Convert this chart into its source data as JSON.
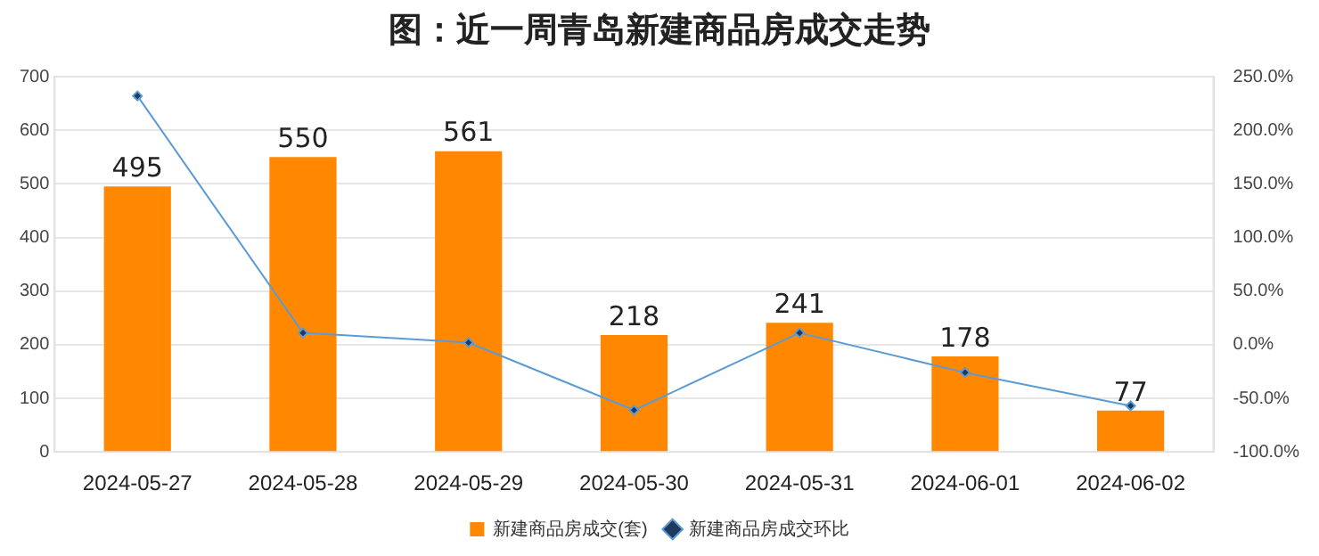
{
  "chart_data": {
    "type": "bar",
    "title": "图：近一周青岛新建商品房成交走势",
    "categories": [
      "2024-05-27",
      "2024-05-28",
      "2024-05-29",
      "2024-05-30",
      "2024-05-31",
      "2024-06-01",
      "2024-06-02"
    ],
    "series": [
      {
        "name": "新建商品房成交(套)",
        "color": "#ff8800",
        "values": [
          495,
          550,
          561,
          218,
          241,
          178,
          77
        ],
        "value_labels": [
          "495",
          "550",
          "561",
          "218",
          "241",
          "178",
          "77"
        ]
      },
      {
        "name": "新建商品房成交环比",
        "type": "line",
        "axis": "y2",
        "color": "#5b9bd5",
        "marker": "diamond",
        "values": [
          232,
          11,
          2,
          -61,
          11,
          -26,
          -57
        ]
      }
    ],
    "ylim": [
      0,
      700
    ],
    "yticks": [
      0,
      100,
      200,
      300,
      400,
      500,
      600,
      700
    ],
    "y2lim": [
      -100,
      250
    ],
    "y2ticks": [
      {
        "value": -100,
        "label": "-100.0%"
      },
      {
        "value": -50,
        "label": "-50.0%"
      },
      {
        "value": 0,
        "label": "0.0%"
      },
      {
        "value": 50,
        "label": "50.0%"
      },
      {
        "value": 100,
        "label": "100.0%"
      },
      {
        "value": 150,
        "label": "150.0%"
      },
      {
        "value": 200,
        "label": "200.0%"
      },
      {
        "value": 250,
        "label": "250.0%"
      }
    ],
    "grid": "y",
    "legend": "bottom"
  }
}
